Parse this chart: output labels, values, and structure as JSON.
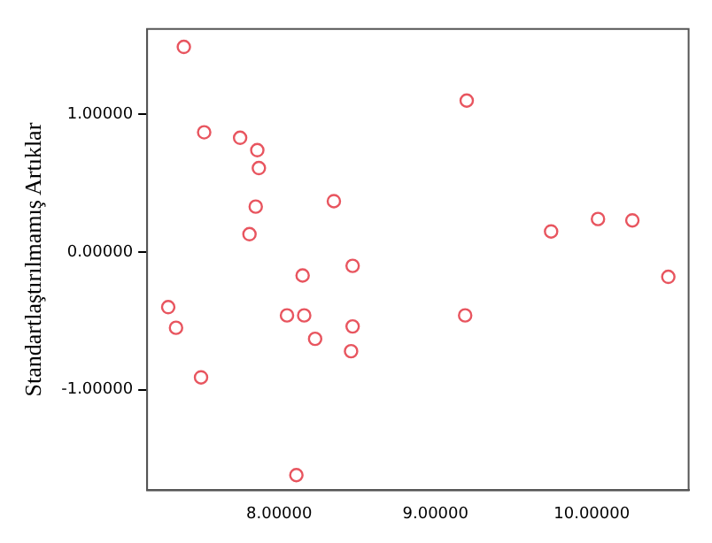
{
  "chart_data": {
    "type": "scatter",
    "ylabel": "Standartlaştırılmamış Artıklar",
    "marker": "circle",
    "grid": false,
    "legend": false,
    "xlim": [
      7.155,
      10.62
    ],
    "ylim": [
      -1.73,
      1.62
    ],
    "xticks": [
      {
        "value": 8,
        "label": "8.00000"
      },
      {
        "value": 9,
        "label": "9.00000"
      },
      {
        "value": 10,
        "label": "10.00000"
      }
    ],
    "yticks": [
      {
        "value": -1,
        "label": "-1.00000"
      },
      {
        "value": 0,
        "label": "0.00000"
      },
      {
        "value": 1,
        "label": "1.00000"
      }
    ],
    "series": [
      {
        "color": "#e8555f",
        "x": [
          7.39,
          7.52,
          7.75,
          7.86,
          7.87,
          7.85,
          7.81,
          8.35,
          8.47,
          8.15,
          7.29,
          7.34,
          7.5,
          8.05,
          8.16,
          8.23,
          8.47,
          8.46,
          8.11,
          9.2,
          9.19,
          9.74,
          10.04,
          10.26,
          10.49
        ],
        "values": [
          1.49,
          0.87,
          0.83,
          0.74,
          0.61,
          0.33,
          0.13,
          0.37,
          -0.1,
          -0.17,
          -0.4,
          -0.55,
          -0.91,
          -0.46,
          -0.46,
          -0.63,
          -0.54,
          -0.72,
          -1.62,
          1.1,
          -0.46,
          0.15,
          0.24,
          0.23,
          -0.18
        ]
      }
    ]
  }
}
